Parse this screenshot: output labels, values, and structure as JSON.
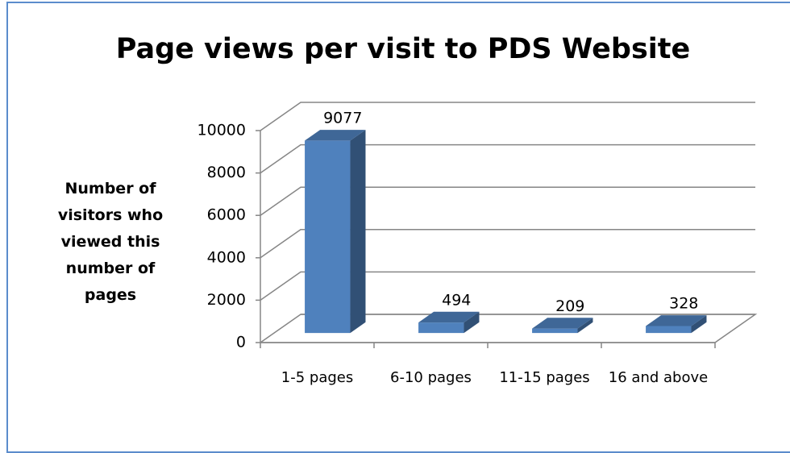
{
  "chart_data": {
    "type": "bar3d",
    "title": "Page views per visit to PDS Website",
    "y_label": "Number of visitors who viewed this number of pages",
    "categories": [
      "1-5 pages",
      "6-10 pages",
      "11-15 pages",
      "16 and above"
    ],
    "values": [
      9077,
      494,
      209,
      328
    ],
    "color": "#4f81bd",
    "ylim": [
      0,
      10000
    ],
    "yticks": [
      0,
      2000,
      4000,
      6000,
      8000,
      10000
    ],
    "grid": true
  }
}
